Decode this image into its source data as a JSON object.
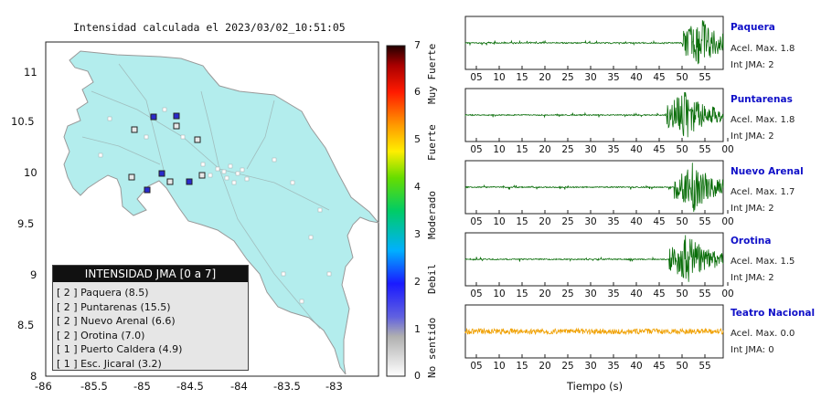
{
  "map": {
    "title": "Intensidad calculada el 2023/03/02_10:51:05",
    "x_ticks": [
      "-86",
      "-85.5",
      "-85",
      "-84.5",
      "-84",
      "-83.5",
      "-83"
    ],
    "y_ticks": [
      "11",
      "10.5",
      "10",
      "9.5",
      "9",
      "8.5",
      "8"
    ],
    "land_color": "#b3eded",
    "legend": {
      "title": "INTENSIDAD JMA [0 a 7]",
      "items": [
        "[ 2 ]  Paquera (8.5)",
        "[ 2 ]  Puntarenas (15.5)",
        "[ 2 ]  Nuevo Arenal (6.6)",
        "[ 2 ]  Orotina (7.0)",
        "[ 1 ]  Puerto Caldera (4.9)",
        "[ 1 ]  Esc. Jicaral (3.2)"
      ]
    }
  },
  "colorbar": {
    "ticks": [
      "0",
      "1",
      "2",
      "3",
      "4",
      "5",
      "6",
      "7"
    ],
    "labels": [
      "No sentido",
      "Debil",
      "Moderado",
      "Fuerte",
      "Muy Fuerte"
    ]
  },
  "waveforms": {
    "x_label": "Tiempo (s)",
    "stations": [
      {
        "name": "Paquera",
        "acel_label": "Acel. Max.",
        "acel": "1.8",
        "int_label": "Int JMA:",
        "int": "2",
        "color": "#0a6e0a",
        "ticks": [
          "05",
          "10",
          "15",
          "20",
          "25",
          "30",
          "35",
          "40",
          "45",
          "50",
          "55"
        ],
        "onset": 0.84
      },
      {
        "name": "Puntarenas",
        "acel_label": "Acel. Max.",
        "acel": "1.8",
        "int_label": "Int JMA:",
        "int": "2",
        "color": "#0a6e0a",
        "ticks": [
          "05",
          "10",
          "15",
          "20",
          "25",
          "30",
          "35",
          "40",
          "45",
          "50",
          "55",
          "00"
        ],
        "onset": 0.78
      },
      {
        "name": "Nuevo Arenal",
        "acel_label": "Acel. Max.",
        "acel": "1.7",
        "int_label": "Int JMA:",
        "int": "2",
        "color": "#0a6e0a",
        "ticks": [
          "05",
          "10",
          "15",
          "20",
          "25",
          "30",
          "35",
          "40",
          "45",
          "50",
          "55",
          "00"
        ],
        "onset": 0.81
      },
      {
        "name": "Orotina",
        "acel_label": "Acel. Max.",
        "acel": "1.5",
        "int_label": "Int JMA:",
        "int": "2",
        "color": "#0a6e0a",
        "ticks": [
          "05",
          "10",
          "15",
          "20",
          "25",
          "30",
          "35",
          "40",
          "45",
          "50",
          "55",
          "00"
        ],
        "onset": 0.79
      },
      {
        "name": "Teatro Nacional",
        "acel_label": "Acel. Max.",
        "acel": "0.0",
        "int_label": "Int JMA:",
        "int": "0",
        "color": "#f0a000",
        "ticks": [
          "05",
          "10",
          "15",
          "20",
          "25",
          "30",
          "35",
          "40",
          "45",
          "50",
          "55"
        ],
        "onset": 1.0
      }
    ]
  }
}
